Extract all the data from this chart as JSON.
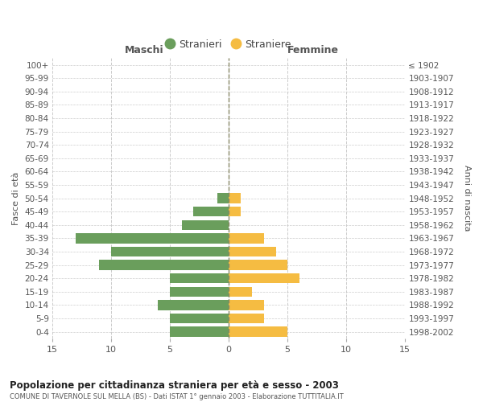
{
  "age_groups": [
    "100+",
    "95-99",
    "90-94",
    "85-89",
    "80-84",
    "75-79",
    "70-74",
    "65-69",
    "60-64",
    "55-59",
    "50-54",
    "45-49",
    "40-44",
    "35-39",
    "30-34",
    "25-29",
    "20-24",
    "15-19",
    "10-14",
    "5-9",
    "0-4"
  ],
  "birth_years": [
    "≤ 1902",
    "1903-1907",
    "1908-1912",
    "1913-1917",
    "1918-1922",
    "1923-1927",
    "1928-1932",
    "1933-1937",
    "1938-1942",
    "1943-1947",
    "1948-1952",
    "1953-1957",
    "1958-1962",
    "1963-1967",
    "1968-1972",
    "1973-1977",
    "1978-1982",
    "1983-1987",
    "1988-1992",
    "1993-1997",
    "1998-2002"
  ],
  "maschi": [
    0,
    0,
    0,
    0,
    0,
    0,
    0,
    0,
    0,
    0,
    1,
    3,
    4,
    13,
    10,
    11,
    5,
    5,
    6,
    5,
    5
  ],
  "femmine": [
    0,
    0,
    0,
    0,
    0,
    0,
    0,
    0,
    0,
    0,
    1,
    1,
    0,
    3,
    4,
    5,
    6,
    2,
    3,
    3,
    5
  ],
  "maschi_color": "#6a9e5c",
  "femmine_color": "#f5bc42",
  "title": "Popolazione per cittadinanza straniera per età e sesso - 2003",
  "subtitle": "COMUNE DI TAVERNOLE SUL MELLA (BS) - Dati ISTAT 1° gennaio 2003 - Elaborazione TUTTITALIA.IT",
  "xlabel_left": "Maschi",
  "xlabel_right": "Femmine",
  "ylabel_left": "Fasce di età",
  "ylabel_right": "Anni di nascita",
  "legend_maschi": "Stranieri",
  "legend_femmine": "Straniere",
  "xlim": [
    -15,
    15
  ],
  "xticks": [
    -15,
    -10,
    -5,
    0,
    5,
    10,
    15
  ],
  "xtick_labels": [
    "15",
    "10",
    "5",
    "0",
    "5",
    "10",
    "15"
  ],
  "bg_color": "#ffffff",
  "grid_color": "#cccccc"
}
